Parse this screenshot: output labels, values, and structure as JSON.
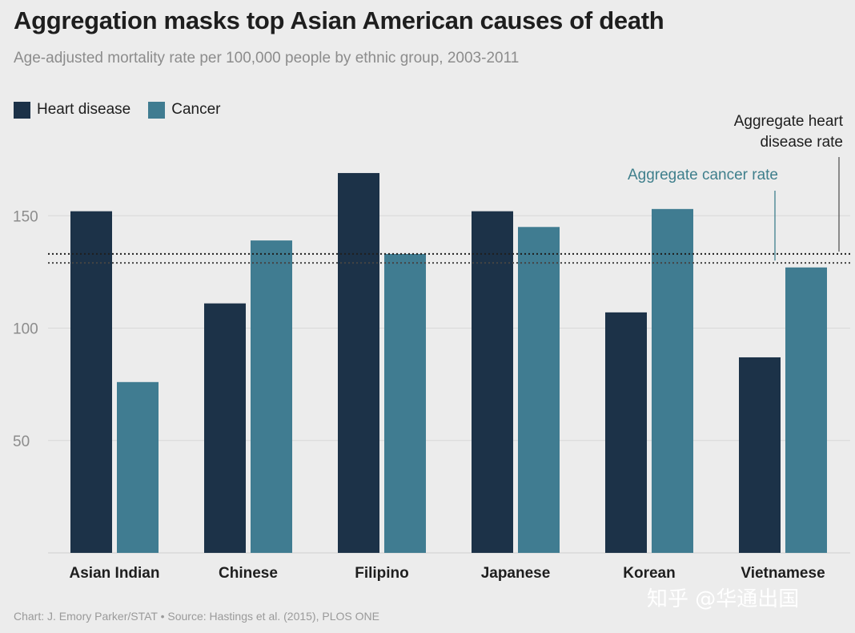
{
  "chart_data": {
    "type": "bar",
    "title": "Aggregation masks top Asian American causes of death",
    "subtitle": "Age-adjusted mortality rate per 100,000 people by ethnic group, 2003-2011",
    "categories": [
      "Asian Indian",
      "Chinese",
      "Filipino",
      "Japanese",
      "Korean",
      "Vietnamese"
    ],
    "series": [
      {
        "name": "Heart disease",
        "color": "#1c3248",
        "values": [
          152,
          111,
          169,
          152,
          107,
          87
        ]
      },
      {
        "name": "Cancer",
        "color": "#407c91",
        "values": [
          76,
          139,
          133,
          145,
          153,
          127
        ]
      }
    ],
    "yticks": [
      50,
      100,
      150
    ],
    "ylim": [
      0,
      175
    ],
    "reference_lines": [
      {
        "name": "Aggregate heart disease rate",
        "label_lines": [
          "Aggregate heart",
          "disease rate"
        ],
        "value": 133,
        "color": "#1e1e1e"
      },
      {
        "name": "Aggregate cancer rate",
        "label_lines": [
          "Aggregate cancer rate"
        ],
        "value": 129,
        "color": "#3f7f8c"
      }
    ],
    "grid": true,
    "legend_position": "top-left"
  },
  "source": "Chart: J. Emory Parker/STAT • Source: Hastings et al. (2015), PLOS ONE",
  "watermark": "知乎 @华通出国"
}
